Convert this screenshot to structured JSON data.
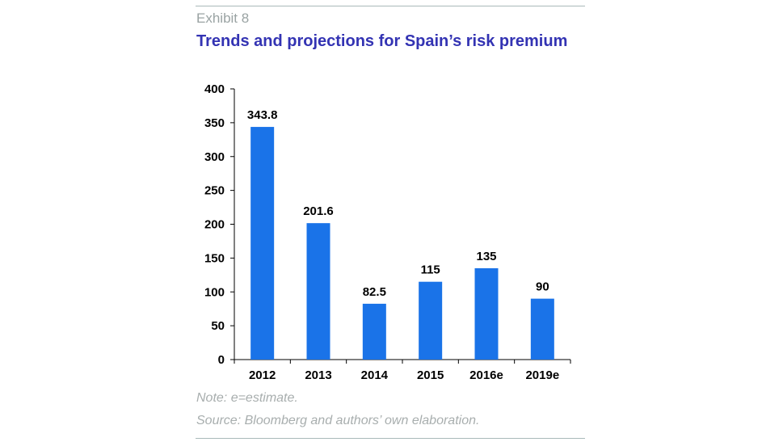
{
  "header": {
    "exhibit": "Exhibit 8",
    "title": "Trends and projections for Spain’s risk premium"
  },
  "footer": {
    "note": "Note: e=estimate.",
    "source": "Source: Bloomberg and authors’ own elaboration."
  },
  "colors": {
    "bar": "#1a73e8",
    "title": "#3333b3",
    "muted": "#9aa3a3",
    "rule": "#a9b9b9"
  },
  "chart_data": {
    "type": "bar",
    "title": "Trends and projections for Spain’s risk premium",
    "categories": [
      "2012",
      "2013",
      "2014",
      "2015",
      "2016e",
      "2019e"
    ],
    "values": [
      343.8,
      201.6,
      82.5,
      115,
      135,
      90
    ],
    "data_labels": [
      "343.8",
      "201.6",
      "82.5",
      "115",
      "135",
      "90"
    ],
    "ylim": [
      0,
      400
    ],
    "yticks": [
      0,
      50,
      100,
      150,
      200,
      250,
      300,
      350,
      400
    ],
    "xlabel": "",
    "ylabel": "",
    "grid": false,
    "legend": "none"
  }
}
